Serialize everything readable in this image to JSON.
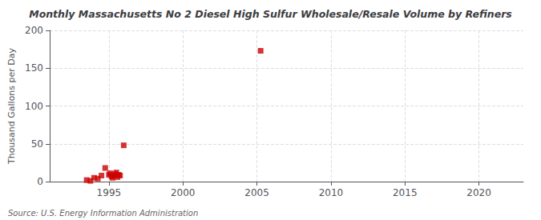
{
  "chart_data": {
    "type": "scatter",
    "title": "Monthly Massachusetts No 2 Diesel High Sulfur Wholesale/Resale Volume by Refiners",
    "ylabel": "Thousand Gallons per Day",
    "source": "Source: U.S. Energy Information Administration",
    "x": [
      1993.5,
      1993.75,
      1994.0,
      1994.25,
      1994.5,
      1994.75,
      1995.0,
      1995.08,
      1995.17,
      1995.25,
      1995.33,
      1995.42,
      1995.5,
      1995.58,
      1995.67,
      1995.75,
      1996.0,
      2005.25
    ],
    "values": [
      2.0,
      1.0,
      5.0,
      4.0,
      8.0,
      18.0,
      9.0,
      11.0,
      7.0,
      5.0,
      8.0,
      10.0,
      12.0,
      6.0,
      9.0,
      8.0,
      48.0,
      173.0
    ],
    "color": "#cc0000",
    "marker": "square",
    "xlim": [
      1991,
      2023
    ],
    "ylim": [
      0,
      200
    ],
    "xticks": [
      1995,
      2000,
      2005,
      2010,
      2015,
      2020
    ],
    "yticks": [
      0,
      50,
      100,
      150,
      200
    ],
    "grid": true
  }
}
